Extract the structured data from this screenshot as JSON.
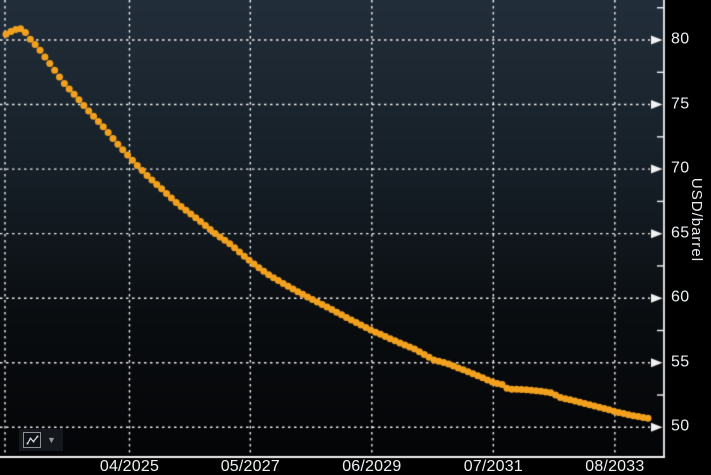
{
  "app": {
    "name": "crude-oil-futures-curve-chart"
  },
  "toolbar": {
    "chart_type_icon": "line-chart-icon",
    "caret_icon": "chevron-down-icon",
    "caret_glyph": "▼"
  },
  "chart_data": {
    "type": "line",
    "style": "beaded-dots",
    "title": "",
    "xlabel": "",
    "ylabel": "USD/barrel",
    "legend": "none",
    "grid": "dashed-white",
    "series_name": "crude-oil-forward-curve",
    "series_color": "#f2a11e",
    "background_top": "#222e3a",
    "background_bottom": "#040507",
    "axis_color": "#f2f2f2",
    "text_color": "#edf0f2",
    "ylim": [
      47.7,
      83.1
    ],
    "yticks": [
      80,
      75,
      70,
      65,
      60,
      55,
      50
    ],
    "ytick_minor": [
      82.5,
      77.5,
      72.5,
      67.5,
      62.5,
      57.5,
      52.5
    ],
    "xticks": [
      {
        "t": 0.0075,
        "label": ""
      },
      {
        "t": 0.195,
        "label": "04/2025"
      },
      {
        "t": 0.377,
        "label": "05/2027"
      },
      {
        "t": 0.56,
        "label": "06/2029"
      },
      {
        "t": 0.743,
        "label": "07/2031"
      },
      {
        "t": 0.926,
        "label": "08/2033"
      }
    ],
    "points": [
      [
        0.0,
        80.45
      ],
      [
        0.011,
        80.75
      ],
      [
        0.022,
        80.9
      ],
      [
        0.031,
        80.55
      ],
      [
        0.037,
        80.1
      ],
      [
        0.05,
        79.4
      ],
      [
        0.062,
        78.6
      ],
      [
        0.078,
        77.5
      ],
      [
        0.093,
        76.5
      ],
      [
        0.106,
        75.8
      ],
      [
        0.12,
        75.0
      ],
      [
        0.137,
        74.05
      ],
      [
        0.154,
        73.15
      ],
      [
        0.171,
        72.1
      ],
      [
        0.192,
        70.95
      ],
      [
        0.206,
        70.2
      ],
      [
        0.224,
        69.3
      ],
      [
        0.243,
        68.45
      ],
      [
        0.263,
        67.5
      ],
      [
        0.283,
        66.7
      ],
      [
        0.304,
        65.9
      ],
      [
        0.326,
        65.0
      ],
      [
        0.349,
        64.2
      ],
      [
        0.382,
        62.8
      ],
      [
        0.411,
        61.75
      ],
      [
        0.442,
        60.85
      ],
      [
        0.473,
        60.0
      ],
      [
        0.505,
        59.2
      ],
      [
        0.536,
        58.35
      ],
      [
        0.57,
        57.5
      ],
      [
        0.606,
        56.7
      ],
      [
        0.637,
        56.05
      ],
      [
        0.667,
        55.2
      ],
      [
        0.684,
        55.0
      ],
      [
        0.707,
        54.55
      ],
      [
        0.73,
        54.1
      ],
      [
        0.76,
        53.45
      ],
      [
        0.774,
        53.3
      ],
      [
        0.782,
        52.95
      ],
      [
        0.8,
        52.95
      ],
      [
        0.832,
        52.8
      ],
      [
        0.852,
        52.65
      ],
      [
        0.86,
        52.35
      ],
      [
        0.886,
        52.05
      ],
      [
        0.909,
        51.75
      ],
      [
        0.933,
        51.45
      ],
      [
        0.95,
        51.2
      ],
      [
        0.972,
        50.95
      ],
      [
        0.989,
        50.8
      ],
      [
        1.0,
        50.7
      ]
    ],
    "n_dots": 133
  }
}
